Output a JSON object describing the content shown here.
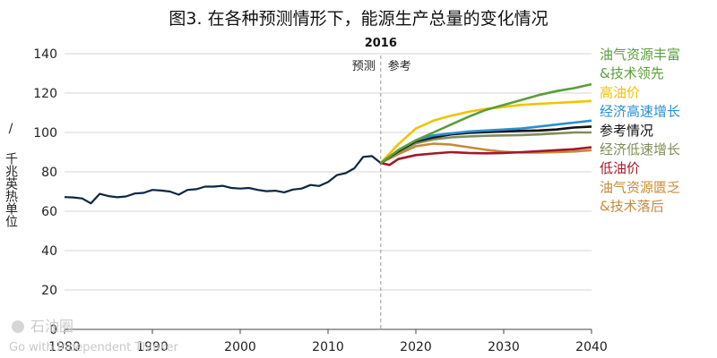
{
  "chart_data": {
    "type": "line",
    "title": "图3. 在各种预测情形下，能源生产总量的变化情况",
    "ylabel": "千兆英热单位",
    "ylabel_prefix": "/",
    "xlim": [
      1980,
      2040
    ],
    "ylim": [
      0,
      140
    ],
    "x_ticks": [
      "1980",
      "1990",
      "2000",
      "2010",
      "2020",
      "2030",
      "2040"
    ],
    "y_ticks": [
      "0",
      "20",
      "40",
      "60",
      "80",
      "100",
      "120",
      "140"
    ],
    "grid": "horizontal",
    "legend": "right",
    "marker": {
      "year": "2016",
      "x": 2016,
      "left_label": "预测",
      "right_label": "参考"
    },
    "history": {
      "color": "#0b2742",
      "points": [
        [
          1980,
          67.2
        ],
        [
          1981,
          67.0
        ],
        [
          1982,
          66.5
        ],
        [
          1983,
          64.0
        ],
        [
          1984,
          68.8
        ],
        [
          1985,
          67.7
        ],
        [
          1986,
          67.1
        ],
        [
          1987,
          67.5
        ],
        [
          1988,
          69.0
        ],
        [
          1989,
          69.3
        ],
        [
          1990,
          70.8
        ],
        [
          1991,
          70.5
        ],
        [
          1992,
          70.0
        ],
        [
          1993,
          68.4
        ],
        [
          1994,
          70.8
        ],
        [
          1995,
          71.2
        ],
        [
          1996,
          72.5
        ],
        [
          1997,
          72.5
        ],
        [
          1998,
          72.9
        ],
        [
          1999,
          71.8
        ],
        [
          2000,
          71.5
        ],
        [
          2001,
          71.8
        ],
        [
          2002,
          70.8
        ],
        [
          2003,
          70.2
        ],
        [
          2004,
          70.4
        ],
        [
          2005,
          69.6
        ],
        [
          2006,
          71.0
        ],
        [
          2007,
          71.5
        ],
        [
          2008,
          73.3
        ],
        [
          2009,
          72.8
        ],
        [
          2010,
          74.8
        ],
        [
          2011,
          78.3
        ],
        [
          2012,
          79.3
        ],
        [
          2013,
          81.8
        ],
        [
          2014,
          87.6
        ],
        [
          2015,
          88.0
        ],
        [
          2016,
          84.5
        ]
      ]
    },
    "series": [
      {
        "legend": [
          "油气资源丰富",
          "&技术领先"
        ],
        "color": "#5a9e3a",
        "points": [
          [
            2016,
            84.5
          ],
          [
            2018,
            91
          ],
          [
            2020,
            96
          ],
          [
            2022,
            100
          ],
          [
            2024,
            104
          ],
          [
            2026,
            108
          ],
          [
            2028,
            111.5
          ],
          [
            2030,
            114
          ],
          [
            2032,
            116.5
          ],
          [
            2034,
            119
          ],
          [
            2036,
            121
          ],
          [
            2038,
            122.5
          ],
          [
            2040,
            124.5
          ]
        ]
      },
      {
        "legend": [
          "高油价"
        ],
        "color": "#f3c200",
        "points": [
          [
            2016,
            84.5
          ],
          [
            2018,
            94
          ],
          [
            2020,
            102
          ],
          [
            2022,
            106
          ],
          [
            2024,
            108.5
          ],
          [
            2026,
            110.5
          ],
          [
            2028,
            112
          ],
          [
            2030,
            113
          ],
          [
            2032,
            114
          ],
          [
            2034,
            114.5
          ],
          [
            2036,
            115
          ],
          [
            2038,
            115.5
          ],
          [
            2040,
            116
          ]
        ]
      },
      {
        "legend": [
          "经济高速增长"
        ],
        "color": "#2a8fd1",
        "points": [
          [
            2016,
            84.5
          ],
          [
            2018,
            91
          ],
          [
            2020,
            96
          ],
          [
            2022,
            98.5
          ],
          [
            2024,
            99.5
          ],
          [
            2026,
            100.5
          ],
          [
            2028,
            101
          ],
          [
            2030,
            101.5
          ],
          [
            2032,
            102
          ],
          [
            2034,
            103
          ],
          [
            2036,
            104
          ],
          [
            2038,
            105
          ],
          [
            2040,
            106
          ]
        ]
      },
      {
        "legend": [
          "参考情况"
        ],
        "color": "#111111",
        "points": [
          [
            2016,
            84.5
          ],
          [
            2018,
            90.5
          ],
          [
            2020,
            95.5
          ],
          [
            2022,
            97.5
          ],
          [
            2024,
            99
          ],
          [
            2026,
            99.8
          ],
          [
            2028,
            100.2
          ],
          [
            2030,
            100.5
          ],
          [
            2032,
            100.8
          ],
          [
            2034,
            101
          ],
          [
            2036,
            101.5
          ],
          [
            2038,
            102.5
          ],
          [
            2040,
            103
          ]
        ]
      },
      {
        "legend": [
          "经济低速增长"
        ],
        "color": "#7f8f57",
        "points": [
          [
            2016,
            84.5
          ],
          [
            2018,
            90
          ],
          [
            2020,
            94.5
          ],
          [
            2022,
            96.5
          ],
          [
            2024,
            97.5
          ],
          [
            2026,
            98
          ],
          [
            2028,
            98.3
          ],
          [
            2030,
            98.5
          ],
          [
            2032,
            98.7
          ],
          [
            2034,
            99
          ],
          [
            2036,
            99.5
          ],
          [
            2038,
            100
          ],
          [
            2040,
            100
          ]
        ]
      },
      {
        "legend": [
          "低油价"
        ],
        "color": "#a3182a",
        "points": [
          [
            2016,
            84.5
          ],
          [
            2017,
            83.5
          ],
          [
            2018,
            86.5
          ],
          [
            2020,
            88.5
          ],
          [
            2022,
            89.3
          ],
          [
            2024,
            90
          ],
          [
            2026,
            89.6
          ],
          [
            2028,
            89.4
          ],
          [
            2030,
            89.6
          ],
          [
            2032,
            90
          ],
          [
            2034,
            90.5
          ],
          [
            2036,
            91
          ],
          [
            2038,
            91.5
          ],
          [
            2040,
            92.5
          ]
        ]
      },
      {
        "legend": [
          "油气资源匮乏",
          "&技术落后"
        ],
        "color": "#c8893a",
        "points": [
          [
            2016,
            84.5
          ],
          [
            2018,
            89
          ],
          [
            2020,
            93
          ],
          [
            2022,
            94.3
          ],
          [
            2024,
            93.8
          ],
          [
            2026,
            92.5
          ],
          [
            2028,
            91.2
          ],
          [
            2030,
            90.2
          ],
          [
            2032,
            89.8
          ],
          [
            2034,
            89.8
          ],
          [
            2036,
            90
          ],
          [
            2038,
            90.3
          ],
          [
            2040,
            91
          ]
        ]
      }
    ]
  },
  "watermark": {
    "name": "石油圈",
    "tagline": "Go with Independent Thinker"
  }
}
